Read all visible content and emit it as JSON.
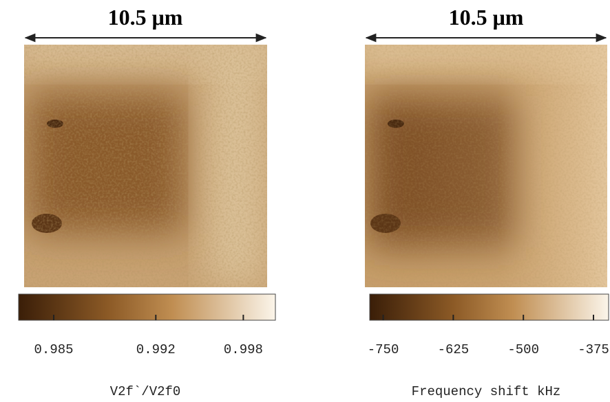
{
  "panels": [
    {
      "scale_label": "10.5 μm",
      "colorbar": {
        "lim": [
          0.98259,
          1.0002
        ],
        "ticks": [
          0.985,
          0.992,
          0.998
        ]
      },
      "quantity_label": "V2f`/V2f0"
    },
    {
      "scale_label": "10.5 μm",
      "colorbar": {
        "lim": [
          -774,
          -348
        ],
        "ticks": [
          -750,
          -625,
          -500,
          -375
        ]
      },
      "quantity_label": "Frequency shift kHz"
    }
  ]
}
